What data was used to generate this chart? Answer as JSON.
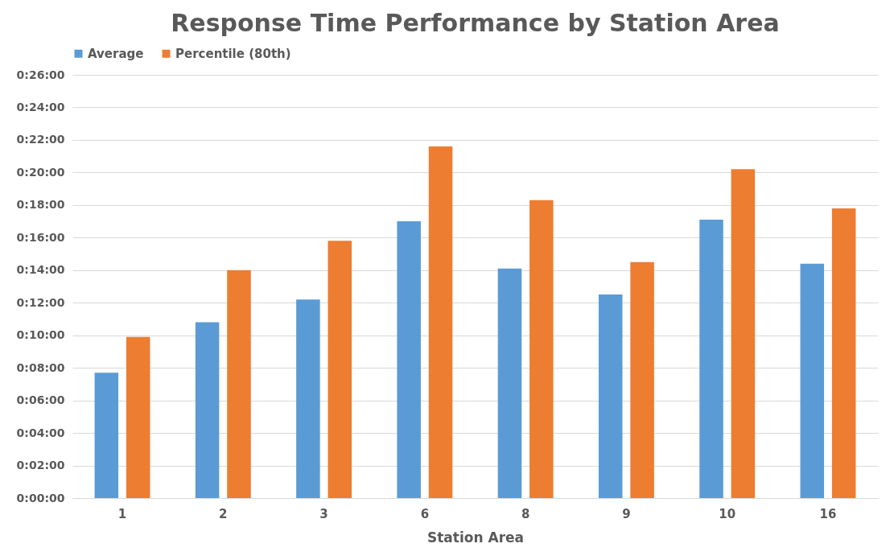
{
  "chart_data": {
    "type": "bar",
    "title": "Response Time Performance by Station Area",
    "xlabel": "Station Area",
    "categories": [
      "1",
      "2",
      "3",
      "6",
      "8",
      "9",
      "10",
      "16"
    ],
    "series": [
      {
        "name": "Average",
        "color": "#5b9bd5",
        "values": [
          7.7,
          10.8,
          12.2,
          17.0,
          14.1,
          12.5,
          17.1,
          14.4
        ]
      },
      {
        "name": "Percentile (80th)",
        "color": "#ed7d31",
        "values": [
          9.9,
          14.0,
          15.8,
          21.6,
          18.3,
          14.5,
          20.2,
          17.8
        ]
      }
    ],
    "ylim": [
      0,
      26
    ],
    "yticks": [
      {
        "value": 0,
        "label": "0:00:00"
      },
      {
        "value": 2,
        "label": "0:02:00"
      },
      {
        "value": 4,
        "label": "0:04:00"
      },
      {
        "value": 6,
        "label": "0:06:00"
      },
      {
        "value": 8,
        "label": "0:08:00"
      },
      {
        "value": 10,
        "label": "0:10:00"
      },
      {
        "value": 12,
        "label": "0:12:00"
      },
      {
        "value": 14,
        "label": "0:14:00"
      },
      {
        "value": 16,
        "label": "0:16:00"
      },
      {
        "value": 18,
        "label": "0:18:00"
      },
      {
        "value": 20,
        "label": "0:20:00"
      },
      {
        "value": 22,
        "label": "0:22:00"
      },
      {
        "value": 24,
        "label": "0:24:00"
      },
      {
        "value": 26,
        "label": "0:26:00"
      }
    ],
    "grid": "y",
    "legend": "top"
  }
}
